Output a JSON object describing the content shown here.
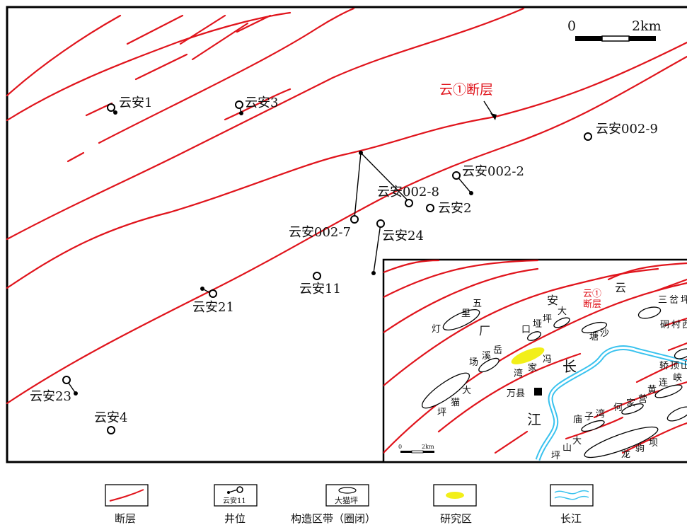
{
  "map": {
    "fault_label": "云①断层",
    "scale_bar": {
      "start_label": "0",
      "end_label": "2km"
    },
    "wells": [
      {
        "name": "云安1"
      },
      {
        "name": "云安3"
      },
      {
        "name": "云安002-9"
      },
      {
        "name": "云安002-2"
      },
      {
        "name": "云安002-8"
      },
      {
        "name": "云安2"
      },
      {
        "name": "云安002-7"
      },
      {
        "name": "云安24"
      },
      {
        "name": "云安11"
      },
      {
        "name": "云安21"
      },
      {
        "name": "云安23"
      },
      {
        "name": "云安4"
      }
    ]
  },
  "inset": {
    "fault_label_line1": "云①",
    "fault_label_line2": "断层",
    "scale_label_start": "0",
    "scale_label_end": "2km",
    "city_label": "万县",
    "river_chars": [
      "长",
      "江"
    ],
    "place_chars": [
      "云",
      "安",
      "厂",
      "五",
      "里",
      "灯",
      "坪",
      "大",
      "垭",
      "口",
      "塘",
      "沙",
      "三",
      "岔",
      "坪",
      "硐",
      "村",
      "西",
      "岳",
      "溪",
      "场",
      "冯",
      "家",
      "湾",
      "大",
      "猫",
      "坪",
      "轿",
      "顶",
      "山",
      "黄",
      "连",
      "峡",
      "何",
      "家",
      "营",
      "庙",
      "子",
      "湾",
      "大",
      "山",
      "坪",
      "龙",
      "驹",
      "坝"
    ]
  },
  "legend": [
    {
      "label": "断层",
      "icon": "fault-line-icon"
    },
    {
      "label": "井位",
      "icon": "well-symbol-icon",
      "sample": "云安11"
    },
    {
      "label": "构造区带（圈闭）",
      "icon": "structure-ellipse-icon",
      "sample": "大猫坪"
    },
    {
      "label": "研究区",
      "icon": "study-area-icon"
    },
    {
      "label": "长江",
      "icon": "river-icon"
    }
  ],
  "colors": {
    "fault": "#e0141c",
    "river": "#39c2ee",
    "study_area": "#f2ef19",
    "frame": "#000000"
  }
}
